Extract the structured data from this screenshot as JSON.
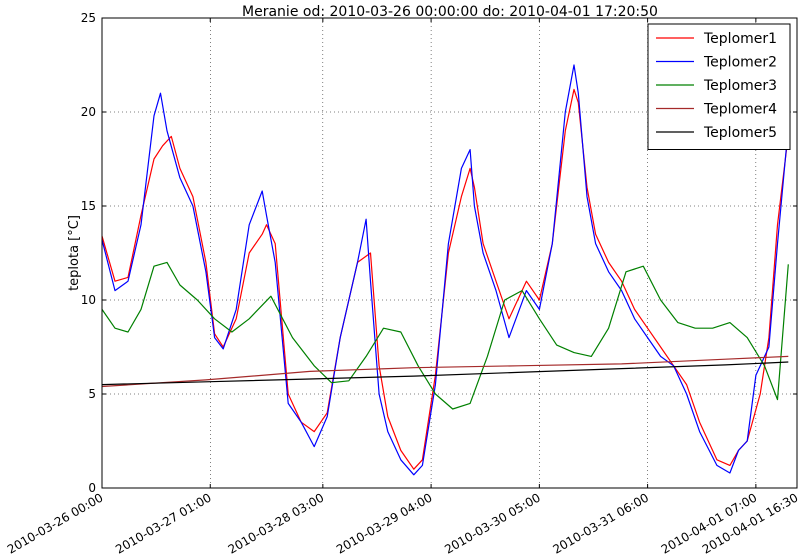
{
  "chart_data": {
    "type": "line",
    "title": "Meranie od: 2010-03-26 00:00:00 do: 2010-04-01 17:20:50",
    "xlabel": "",
    "ylabel": "teplota [°C]",
    "ylim": [
      0,
      25
    ],
    "yticks": [
      "0",
      "5",
      "10",
      "15",
      "20",
      "25"
    ],
    "xlim": [
      "2010-03-26 00:00",
      "2010-04-01 16:30"
    ],
    "xticks": [
      "2010-03-26 00:00",
      "2010-03-27 01:00",
      "2010-03-28 03:00",
      "2010-03-29 04:00",
      "2010-03-30 05:00",
      "2010-03-31 06:00",
      "2010-04-01 07:00",
      "2010-04-01 16:30"
    ],
    "grid": true,
    "legend_position": "top-right",
    "series": [
      {
        "name": "Teplomer1",
        "color": "#ff0000",
        "x": [
          "2010-03-26 00:00",
          "2010-03-26 03:00",
          "2010-03-26 06:00",
          "2010-03-26 09:00",
          "2010-03-26 12:00",
          "2010-03-26 14:00",
          "2010-03-26 16:00",
          "2010-03-26 18:00",
          "2010-03-26 21:00",
          "2010-03-27 00:00",
          "2010-03-27 02:00",
          "2010-03-27 04:00",
          "2010-03-27 07:00",
          "2010-03-27 10:00",
          "2010-03-27 13:00",
          "2010-03-27 14:00",
          "2010-03-27 16:00",
          "2010-03-27 19:00",
          "2010-03-27 22:00",
          "2010-03-28 01:00",
          "2010-03-28 04:00",
          "2010-03-28 07:00",
          "2010-03-28 11:00",
          "2010-03-28 14:00",
          "2010-03-28 16:00",
          "2010-03-28 18:00",
          "2010-03-28 21:00",
          "2010-03-29 00:00",
          "2010-03-29 02:00",
          "2010-03-29 05:00",
          "2010-03-29 08:00",
          "2010-03-29 11:00",
          "2010-03-29 13:00",
          "2010-03-29 14:00",
          "2010-03-29 16:00",
          "2010-03-29 19:00",
          "2010-03-29 22:00",
          "2010-03-30 02:00",
          "2010-03-30 05:00",
          "2010-03-30 08:00",
          "2010-03-30 11:00",
          "2010-03-30 13:00",
          "2010-03-30 14:00",
          "2010-03-30 16:00",
          "2010-03-30 18:00",
          "2010-03-30 21:00",
          "2010-03-31 00:00",
          "2010-03-31 03:00",
          "2010-03-31 06:00",
          "2010-03-31 09:00",
          "2010-03-31 12:00",
          "2010-03-31 15:00",
          "2010-03-31 18:00",
          "2010-03-31 22:00",
          "2010-04-01 01:00",
          "2010-04-01 03:00",
          "2010-04-01 05:00",
          "2010-04-01 08:00",
          "2010-04-01 10:00",
          "2010-04-01 12:00",
          "2010-04-01 14:30"
        ],
        "y": [
          13.4,
          11.0,
          11.2,
          14.5,
          17.5,
          18.2,
          18.7,
          17.0,
          15.5,
          12.0,
          8.2,
          7.5,
          9.0,
          12.5,
          13.5,
          14.0,
          13.0,
          5.0,
          3.5,
          3.0,
          4.0,
          8.0,
          12.0,
          12.5,
          6.5,
          3.8,
          2.0,
          1.0,
          1.5,
          6.0,
          12.5,
          15.5,
          17.0,
          16.0,
          13.0,
          11.0,
          9.0,
          11.0,
          10.0,
          13.0,
          19.0,
          21.2,
          20.5,
          16.0,
          13.5,
          12.0,
          11.0,
          9.5,
          8.5,
          7.5,
          6.5,
          5.5,
          3.5,
          1.5,
          1.2,
          2.0,
          2.5,
          5.0,
          8.0,
          14.0,
          18.8
        ]
      },
      {
        "name": "Teplomer2",
        "color": "#0000ff",
        "x": [
          "2010-03-26 00:00",
          "2010-03-26 03:00",
          "2010-03-26 06:00",
          "2010-03-26 09:00",
          "2010-03-26 12:00",
          "2010-03-26 13:30",
          "2010-03-26 15:00",
          "2010-03-26 18:00",
          "2010-03-26 21:00",
          "2010-03-27 00:00",
          "2010-03-27 02:00",
          "2010-03-27 04:00",
          "2010-03-27 07:00",
          "2010-03-27 10:00",
          "2010-03-27 13:00",
          "2010-03-27 14:00",
          "2010-03-27 16:00",
          "2010-03-27 19:00",
          "2010-03-27 22:00",
          "2010-03-28 01:00",
          "2010-03-28 04:00",
          "2010-03-28 07:00",
          "2010-03-28 11:00",
          "2010-03-28 13:00",
          "2010-03-28 14:00",
          "2010-03-28 16:00",
          "2010-03-28 18:00",
          "2010-03-28 21:00",
          "2010-03-29 00:00",
          "2010-03-29 02:00",
          "2010-03-29 05:00",
          "2010-03-29 08:00",
          "2010-03-29 11:00",
          "2010-03-29 13:00",
          "2010-03-29 14:00",
          "2010-03-29 16:00",
          "2010-03-29 19:00",
          "2010-03-29 22:00",
          "2010-03-30 02:00",
          "2010-03-30 05:00",
          "2010-03-30 08:00",
          "2010-03-30 11:00",
          "2010-03-30 13:00",
          "2010-03-30 14:00",
          "2010-03-30 16:00",
          "2010-03-30 18:00",
          "2010-03-30 21:00",
          "2010-03-31 00:00",
          "2010-03-31 03:00",
          "2010-03-31 06:00",
          "2010-03-31 09:00",
          "2010-03-31 12:00",
          "2010-03-31 15:00",
          "2010-03-31 18:00",
          "2010-03-31 22:00",
          "2010-04-01 01:00",
          "2010-04-01 03:00",
          "2010-04-01 05:00",
          "2010-04-01 07:00",
          "2010-04-01 10:00",
          "2010-04-01 12:00",
          "2010-04-01 14:30"
        ],
        "y": [
          13.2,
          10.5,
          11.0,
          14.0,
          19.8,
          21.0,
          19.0,
          16.5,
          15.0,
          11.5,
          8.0,
          7.4,
          9.5,
          14.0,
          15.8,
          14.5,
          12.0,
          4.5,
          3.5,
          2.2,
          3.8,
          8.0,
          12.0,
          14.3,
          11.0,
          5.0,
          3.0,
          1.5,
          0.7,
          1.2,
          5.5,
          13.0,
          17.0,
          18.0,
          15.0,
          12.5,
          10.5,
          8.0,
          10.5,
          9.5,
          13.0,
          20.0,
          22.5,
          21.0,
          15.5,
          13.0,
          11.5,
          10.5,
          9.0,
          8.0,
          7.0,
          6.5,
          5.0,
          3.0,
          1.2,
          0.8,
          2.0,
          2.5,
          6.0,
          7.5,
          13.0,
          19.2
        ]
      },
      {
        "name": "Teplomer3",
        "color": "#008000",
        "x": [
          "2010-03-26 00:00",
          "2010-03-26 03:00",
          "2010-03-26 06:00",
          "2010-03-26 09:00",
          "2010-03-26 12:00",
          "2010-03-26 15:00",
          "2010-03-26 18:00",
          "2010-03-26 22:00",
          "2010-03-27 02:00",
          "2010-03-27 06:00",
          "2010-03-27 10:00",
          "2010-03-27 15:00",
          "2010-03-27 20:00",
          "2010-03-28 01:00",
          "2010-03-28 05:00",
          "2010-03-28 09:00",
          "2010-03-28 13:00",
          "2010-03-28 17:00",
          "2010-03-28 21:00",
          "2010-03-29 01:00",
          "2010-03-29 05:00",
          "2010-03-29 09:00",
          "2010-03-29 13:00",
          "2010-03-29 17:00",
          "2010-03-29 21:00",
          "2010-03-30 01:00",
          "2010-03-30 05:00",
          "2010-03-30 09:00",
          "2010-03-30 13:00",
          "2010-03-30 17:00",
          "2010-03-30 21:00",
          "2010-03-31 01:00",
          "2010-03-31 05:00",
          "2010-03-31 09:00",
          "2010-03-31 13:00",
          "2010-03-31 17:00",
          "2010-03-31 21:00",
          "2010-04-01 01:00",
          "2010-04-01 05:00",
          "2010-04-01 09:00",
          "2010-04-01 12:00",
          "2010-04-01 14:30"
        ],
        "y": [
          9.5,
          8.5,
          8.3,
          9.5,
          11.8,
          12.0,
          10.8,
          10.0,
          9.0,
          8.3,
          9.0,
          10.2,
          8.0,
          6.5,
          5.6,
          5.7,
          7.0,
          8.5,
          8.3,
          6.5,
          5.0,
          4.2,
          4.5,
          7.0,
          10.0,
          10.5,
          9.0,
          7.6,
          7.2,
          7.0,
          8.5,
          11.5,
          11.8,
          10.0,
          8.8,
          8.5,
          8.5,
          8.8,
          8.0,
          6.5,
          4.7,
          11.9
        ]
      },
      {
        "name": "Teplomer4",
        "color": "#a52a2a",
        "x": [
          "2010-03-26 00:00",
          "2010-03-27 00:00",
          "2010-03-28 00:00",
          "2010-03-29 00:00",
          "2010-03-30 00:00",
          "2010-03-31 00:00",
          "2010-04-01 00:00",
          "2010-04-01 14:30"
        ],
        "y": [
          5.4,
          5.75,
          6.2,
          6.4,
          6.5,
          6.6,
          6.85,
          7.0
        ]
      },
      {
        "name": "Teplomer5",
        "color": "#000000",
        "x": [
          "2010-03-26 00:00",
          "2010-03-27 00:00",
          "2010-03-28 00:00",
          "2010-03-29 00:00",
          "2010-03-30 00:00",
          "2010-03-31 00:00",
          "2010-04-01 00:00",
          "2010-04-01 14:30"
        ],
        "y": [
          5.5,
          5.65,
          5.8,
          5.95,
          6.15,
          6.35,
          6.55,
          6.7
        ]
      }
    ]
  }
}
